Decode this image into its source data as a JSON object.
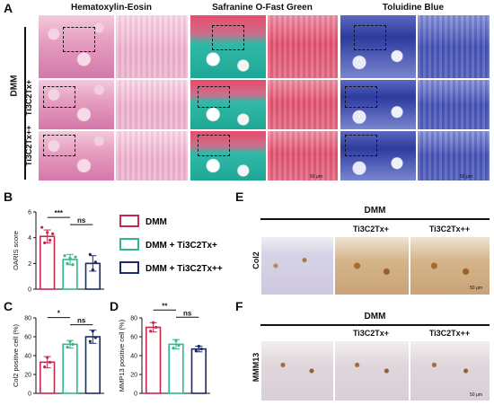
{
  "panels": {
    "A": "A",
    "B": "B",
    "C": "C",
    "D": "D",
    "E": "E",
    "F": "F"
  },
  "histology": {
    "stains": [
      "Hematoxylin-Eosin",
      "Safranine O-Fast Green",
      "Toluidine Blue"
    ],
    "group_label": "DMM",
    "row_labels": [
      "",
      "Ti3C2Tx+",
      "Ti3C2Tx++"
    ],
    "scale_bar": "50 μm"
  },
  "legend": {
    "items": [
      {
        "label": "DMM",
        "color": "#c8274e"
      },
      {
        "label": "DMM + Ti3C2Tx+",
        "color": "#2fb98c"
      },
      {
        "label": "DMM + Ti3C2Tx++",
        "color": "#1d2a6b"
      }
    ]
  },
  "ihc_E": {
    "group_label": "DMM",
    "column_labels": [
      "",
      "Ti3C2Tx+",
      "Ti3C2Tx++"
    ],
    "row_label": "Col2",
    "scale_bar": "50 μm"
  },
  "ihc_F": {
    "group_label": "DMM",
    "column_labels": [
      "",
      "Ti3C2Tx+",
      "Ti3C2Tx++"
    ],
    "row_label": "MMM13",
    "scale_bar": "50 μm"
  },
  "chart_data": [
    {
      "panel": "B",
      "type": "bar",
      "categories": [
        "DMM",
        "DMM + Ti3C2Tx+",
        "DMM + Ti3C2Tx++"
      ],
      "values": [
        4.1,
        2.3,
        2.0
      ],
      "errors": [
        0.5,
        0.4,
        0.6
      ],
      "points": [
        [
          4.8,
          3.6,
          4.4,
          3.8,
          4.3
        ],
        [
          2.6,
          2.0,
          2.4,
          1.9,
          2.5
        ],
        [
          2.7,
          1.5,
          2.1
        ]
      ],
      "ylabel": "OARIS score",
      "ylim": [
        0,
        6
      ],
      "yticks": [
        0,
        2,
        4,
        6
      ],
      "significance": [
        {
          "label": "***",
          "from": 0,
          "to": 1
        },
        {
          "label": "ns",
          "from": 1,
          "to": 2
        }
      ]
    },
    {
      "panel": "C",
      "type": "bar",
      "categories": [
        "DMM",
        "DMM + Ti3C2Tx+",
        "DMM + Ti3C2Tx++"
      ],
      "values": [
        33,
        52,
        60
      ],
      "errors": [
        6,
        4,
        7
      ],
      "points": [
        [
          28,
          38,
          33
        ],
        [
          49,
          55,
          52
        ],
        [
          55,
          66,
          59
        ]
      ],
      "ylabel": "Col2 positive cell (%)",
      "ylim": [
        0,
        80
      ],
      "yticks": [
        0,
        20,
        40,
        60,
        80
      ],
      "significance": [
        {
          "label": "*",
          "from": 0,
          "to": 1
        },
        {
          "label": "ns",
          "from": 1,
          "to": 2
        }
      ]
    },
    {
      "panel": "D",
      "type": "bar",
      "categories": [
        "DMM",
        "DMM + Ti3C2Tx+",
        "DMM + Ti3C2Tx++"
      ],
      "values": [
        70,
        52,
        47
      ],
      "errors": [
        5,
        5,
        3
      ],
      "points": [
        [
          66,
          75,
          70
        ],
        [
          48,
          56,
          51
        ],
        [
          45,
          50,
          47
        ]
      ],
      "ylabel": "MMP13 positive cell (%)",
      "ylim": [
        0,
        80
      ],
      "yticks": [
        0,
        20,
        40,
        60,
        80
      ],
      "significance": [
        {
          "label": "**",
          "from": 0,
          "to": 1
        },
        {
          "label": "ns",
          "from": 1,
          "to": 2
        }
      ]
    }
  ]
}
